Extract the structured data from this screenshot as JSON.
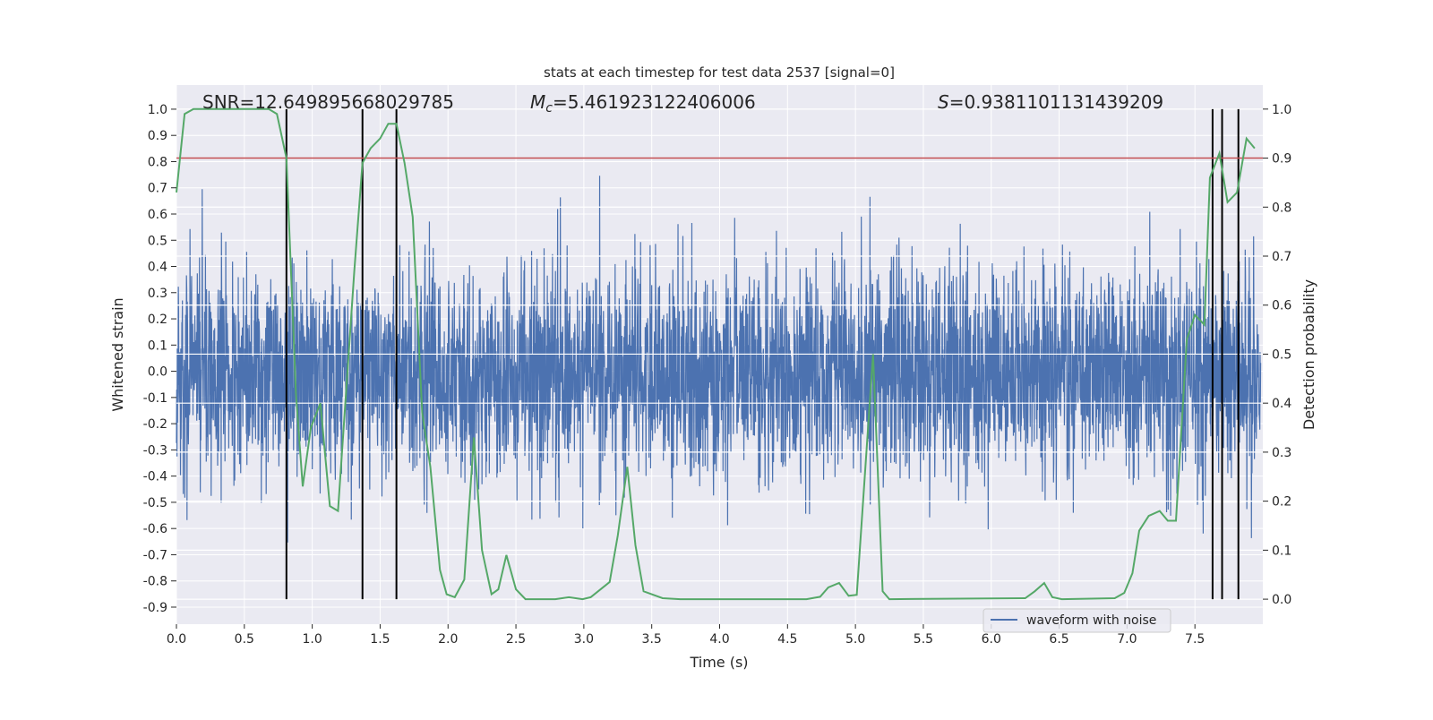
{
  "chart_data": {
    "type": "line",
    "title": "stats at each timestep for test data 2537 [signal=0]",
    "xlabel": "Time (s)",
    "ylabel": "Whitened strain",
    "ylabel_right": "Detection probability",
    "xlim": [
      0,
      8
    ],
    "ylim": [
      -0.965,
      1.092
    ],
    "ylim_right": [
      -0.051,
      1.049
    ],
    "grid": true,
    "x_ticks": [
      "0.0",
      "0.5",
      "1.0",
      "1.5",
      "2.0",
      "2.5",
      "3.0",
      "3.5",
      "4.0",
      "4.5",
      "5.0",
      "5.5",
      "6.0",
      "6.5",
      "7.0",
      "7.5"
    ],
    "y_ticks": [
      "1.0",
      "0.9",
      "0.8",
      "0.7",
      "0.6",
      "0.5",
      "0.4",
      "0.3",
      "0.2",
      "0.1",
      "0.0",
      "-0.1",
      "-0.2",
      "-0.3",
      "-0.4",
      "-0.5",
      "-0.6",
      "-0.7",
      "-0.8",
      "-0.9"
    ],
    "y_ticks_right": [
      "1.0",
      "0.9",
      "0.8",
      "0.7",
      "0.6",
      "0.5",
      "0.4",
      "0.3",
      "0.2",
      "0.1",
      "0.0"
    ],
    "annotations": {
      "snr": "SNR=12.649895668029785",
      "mc_prefix": "M",
      "mc_sub": "c",
      "mc_value": "=5.461923122406006",
      "s_prefix": "S",
      "s_value": "=0.9381101131439209"
    },
    "legend": {
      "position": "lower-right",
      "entries": [
        "waveform with noise"
      ]
    },
    "colors": {
      "waveform": "#4c72b0",
      "probability": "#55a868",
      "threshold": "#c44e52",
      "markers": "#000000",
      "background": "#eaeaf2"
    },
    "threshold": 0.9,
    "detection_markers": [
      0.81,
      1.37,
      1.62,
      7.63,
      7.7,
      7.82
    ],
    "waveform": {
      "name": "waveform with noise",
      "n_samples": 4000,
      "noise_std": 0.2,
      "min": -0.87,
      "max": 0.95
    },
    "probability": [
      [
        0,
        0.83
      ],
      [
        0.06,
        0.99
      ],
      [
        0.125,
        1.0
      ],
      [
        0.61,
        1.0
      ],
      [
        0.68,
        1.0
      ],
      [
        0.74,
        0.99
      ],
      [
        0.81,
        0.9
      ],
      [
        0.88,
        0.42
      ],
      [
        0.93,
        0.23
      ],
      [
        0.99,
        0.35
      ],
      [
        1.06,
        0.4
      ],
      [
        1.13,
        0.19
      ],
      [
        1.19,
        0.18
      ],
      [
        1.31,
        0.67
      ],
      [
        1.37,
        0.89
      ],
      [
        1.43,
        0.92
      ],
      [
        1.5,
        0.94
      ],
      [
        1.56,
        0.97
      ],
      [
        1.62,
        0.97
      ],
      [
        1.68,
        0.89
      ],
      [
        1.74,
        0.78
      ],
      [
        1.81,
        0.38
      ],
      [
        1.87,
        0.27
      ],
      [
        1.94,
        0.06
      ],
      [
        1.99,
        0.01
      ],
      [
        2.05,
        0.004
      ],
      [
        2.12,
        0.04
      ],
      [
        2.19,
        0.33
      ],
      [
        2.25,
        0.1
      ],
      [
        2.32,
        0.01
      ],
      [
        2.37,
        0.02
      ],
      [
        2.43,
        0.09
      ],
      [
        2.5,
        0.02
      ],
      [
        2.57,
        0.0
      ],
      [
        2.79,
        0.0
      ],
      [
        2.89,
        0.004
      ],
      [
        2.99,
        0.0
      ],
      [
        3.05,
        0.004
      ],
      [
        3.19,
        0.035
      ],
      [
        3.25,
        0.13
      ],
      [
        3.32,
        0.27
      ],
      [
        3.38,
        0.11
      ],
      [
        3.44,
        0.016
      ],
      [
        3.58,
        0.002
      ],
      [
        3.71,
        0.0
      ],
      [
        4.64,
        0.0
      ],
      [
        4.74,
        0.005
      ],
      [
        4.8,
        0.024
      ],
      [
        4.88,
        0.033
      ],
      [
        4.95,
        0.007
      ],
      [
        5.01,
        0.009
      ],
      [
        5.13,
        0.5
      ],
      [
        5.2,
        0.016
      ],
      [
        5.25,
        0.0
      ],
      [
        6.25,
        0.002
      ],
      [
        6.32,
        0.016
      ],
      [
        6.39,
        0.033
      ],
      [
        6.45,
        0.004
      ],
      [
        6.52,
        0.0
      ],
      [
        6.91,
        0.002
      ],
      [
        6.98,
        0.013
      ],
      [
        7.04,
        0.053
      ],
      [
        7.09,
        0.14
      ],
      [
        7.16,
        0.17
      ],
      [
        7.24,
        0.18
      ],
      [
        7.3,
        0.16
      ],
      [
        7.36,
        0.16
      ],
      [
        7.44,
        0.53
      ],
      [
        7.5,
        0.58
      ],
      [
        7.57,
        0.56
      ],
      [
        7.61,
        0.86
      ],
      [
        7.68,
        0.91
      ],
      [
        7.74,
        0.81
      ],
      [
        7.81,
        0.83
      ],
      [
        7.88,
        0.94
      ],
      [
        7.94,
        0.92
      ]
    ]
  }
}
